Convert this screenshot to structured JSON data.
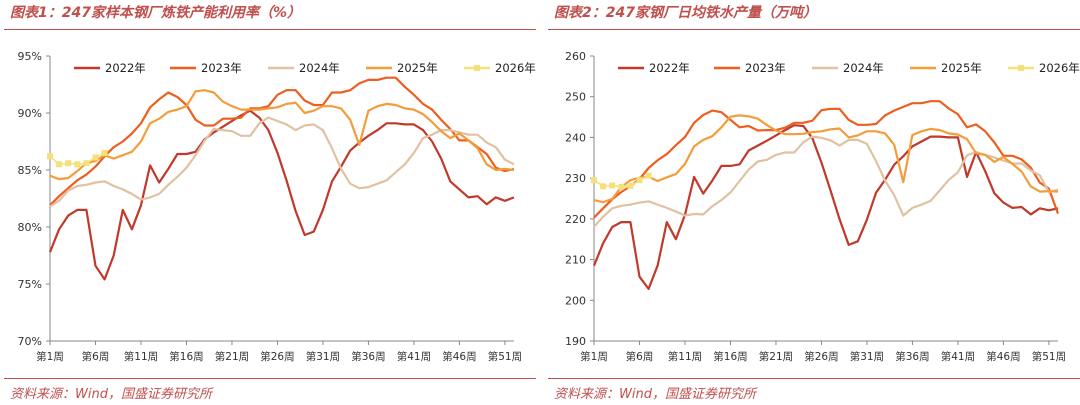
{
  "charts": [
    {
      "title": "图表1：247家样本钢厂炼铁产能利用率（%）",
      "source": "资料来源：Wind，国盛证券研究所"
    },
    {
      "title": "图表2：247家钢厂日均铁水产量（万吨）",
      "source": "资料来源：Wind，国盛证券研究所"
    }
  ],
  "chart_data": [
    {
      "type": "line",
      "title": "图表1：247家样本钢厂炼铁产能利用率（%）",
      "xlabel": "",
      "ylabel": "",
      "ylim": [
        70,
        95
      ],
      "yticks": [
        70,
        75,
        80,
        85,
        90,
        95
      ],
      "ytick_labels": [
        "70%",
        "75%",
        "80%",
        "85%",
        "90%",
        "95%"
      ],
      "xlim": [
        1,
        52
      ],
      "xtick_weeks": [
        1,
        6,
        11,
        16,
        21,
        26,
        31,
        36,
        41,
        46,
        51
      ],
      "xtick_labels": [
        "第1周",
        "第6周",
        "第11周",
        "第16周",
        "第21周",
        "第26周",
        "第31周",
        "第36周",
        "第41周",
        "第46周",
        "第51周"
      ],
      "grid": false,
      "legend_position": "top",
      "series": [
        {
          "name": "2022年",
          "color": "#c0392b",
          "marker": "none",
          "values": [
            77.8,
            79.8,
            81.0,
            81.5,
            81.5,
            76.6,
            75.4,
            77.5,
            81.5,
            79.8,
            81.9,
            85.4,
            83.9,
            85.1,
            86.4,
            86.4,
            86.6,
            87.7,
            88.3,
            88.8,
            89.3,
            89.8,
            90.2,
            89.6,
            88.5,
            86.5,
            84.1,
            81.4,
            79.3,
            79.6,
            81.5,
            84.0,
            85.3,
            86.7,
            87.4,
            88.0,
            88.5,
            89.1,
            89.1,
            89.0,
            89.0,
            88.5,
            87.5,
            86.0,
            84.0,
            83.3,
            82.6,
            82.7,
            82.0,
            82.6,
            82.3,
            82.6
          ]
        },
        {
          "name": "2023年",
          "color": "#ed5e1f",
          "marker": "none",
          "values": [
            81.9,
            82.7,
            83.4,
            84.1,
            84.6,
            85.3,
            86.2,
            87.0,
            87.5,
            88.2,
            89.1,
            90.5,
            91.2,
            91.8,
            91.4,
            90.7,
            89.4,
            88.9,
            88.9,
            89.5,
            89.5,
            89.6,
            90.4,
            90.4,
            90.6,
            91.6,
            92.0,
            92.0,
            91.1,
            90.7,
            90.7,
            91.8,
            91.8,
            92.0,
            92.6,
            92.9,
            92.9,
            93.1,
            93.1,
            92.3,
            91.6,
            90.8,
            90.3,
            89.4,
            88.6,
            87.6,
            87.6,
            87.0,
            86.4,
            85.2,
            84.9,
            85.1
          ]
        },
        {
          "name": "2024年",
          "color": "#e0c2a2",
          "marker": "none",
          "values": [
            81.8,
            82.3,
            83.2,
            83.6,
            83.7,
            83.9,
            84.0,
            83.6,
            83.3,
            82.9,
            82.4,
            82.6,
            82.9,
            83.7,
            84.4,
            85.2,
            86.3,
            87.6,
            88.6,
            88.5,
            88.4,
            88.0,
            88.0,
            89.1,
            89.6,
            89.3,
            89.0,
            88.5,
            88.9,
            89.0,
            88.5,
            86.9,
            85.1,
            83.8,
            83.4,
            83.5,
            83.8,
            84.1,
            84.8,
            85.5,
            86.5,
            87.8,
            88.1,
            88.5,
            88.5,
            88.3,
            88.1,
            88.1,
            87.4,
            87.0,
            85.9,
            85.5
          ]
        },
        {
          "name": "2025年",
          "color": "#f39c3a",
          "marker": "none",
          "values": [
            84.5,
            84.2,
            84.3,
            84.9,
            85.6,
            85.8,
            86.3,
            86.0,
            86.3,
            86.6,
            87.5,
            89.1,
            89.5,
            90.1,
            90.3,
            90.6,
            91.9,
            92.0,
            91.8,
            91.0,
            90.6,
            90.3,
            90.3,
            90.3,
            90.4,
            90.5,
            90.8,
            90.9,
            90.0,
            90.2,
            90.6,
            90.6,
            90.4,
            89.4,
            87.2,
            90.2,
            90.6,
            90.8,
            90.7,
            90.4,
            90.3,
            89.9,
            89.2,
            88.4,
            87.8,
            88.2,
            87.6,
            86.9,
            85.5,
            85.0,
            85.1,
            85.0
          ]
        },
        {
          "name": "2026年",
          "color": "#f5e07a",
          "marker": "square",
          "values": [
            86.2,
            85.5,
            85.6,
            85.5,
            85.6,
            86.1,
            86.5
          ]
        }
      ]
    },
    {
      "type": "line",
      "title": "图表2：247家钢厂日均铁水产量（万吨）",
      "xlabel": "",
      "ylabel": "",
      "ylim": [
        190,
        260
      ],
      "yticks": [
        190,
        200,
        210,
        220,
        230,
        240,
        250,
        260
      ],
      "ytick_labels": [
        "190",
        "200",
        "210",
        "220",
        "230",
        "240",
        "250",
        "260"
      ],
      "xlim": [
        1,
        52
      ],
      "xtick_weeks": [
        1,
        6,
        11,
        16,
        21,
        26,
        31,
        36,
        41,
        46,
        51
      ],
      "xtick_labels": [
        "第1周",
        "第6周",
        "第11周",
        "第16周",
        "第21周",
        "第26周",
        "第31周",
        "第36周",
        "第41周",
        "第46周",
        "第51周"
      ],
      "grid": false,
      "legend_position": "top",
      "series": [
        {
          "name": "2022年",
          "color": "#c0392b",
          "marker": "none",
          "values": [
            208.5,
            214.0,
            218.0,
            219.2,
            219.2,
            205.8,
            202.8,
            208.6,
            219.2,
            215.0,
            221.0,
            230.3,
            226.2,
            229.4,
            233.0,
            233.0,
            233.4,
            236.8,
            238.0,
            239.2,
            240.5,
            241.8,
            243.0,
            242.8,
            239.8,
            233.8,
            227.0,
            219.9,
            213.6,
            214.5,
            219.8,
            226.4,
            229.6,
            233.3,
            235.4,
            237.8,
            239.0,
            240.2,
            240.2,
            240.0,
            240.0,
            230.3,
            236.4,
            231.7,
            226.3,
            224.0,
            222.7,
            222.9,
            221.1,
            222.6,
            222.1,
            222.6
          ]
        },
        {
          "name": "2023年",
          "color": "#ed5e1f",
          "marker": "none",
          "values": [
            220.3,
            222.6,
            224.8,
            226.6,
            228.0,
            229.8,
            232.5,
            234.4,
            235.9,
            238.1,
            240.1,
            243.6,
            245.5,
            246.6,
            246.2,
            244.3,
            242.5,
            242.8,
            241.7,
            241.8,
            241.8,
            242.4,
            243.6,
            243.6,
            244.1,
            246.7,
            247.0,
            247.0,
            244.3,
            243.1,
            243.1,
            243.3,
            245.4,
            246.6,
            247.5,
            248.4,
            248.4,
            248.9,
            248.9,
            247.1,
            245.7,
            242.5,
            243.2,
            241.5,
            238.8,
            235.5,
            235.5,
            234.6,
            232.6,
            228.9,
            227.4,
            221.3
          ]
        },
        {
          "name": "2024年",
          "color": "#e0c2a2",
          "marker": "none",
          "values": [
            218.1,
            220.5,
            222.6,
            223.2,
            223.5,
            224.0,
            224.3,
            223.5,
            222.7,
            221.8,
            220.8,
            221.2,
            221.1,
            223.1,
            224.6,
            226.5,
            229.3,
            232.1,
            234.1,
            234.5,
            235.7,
            236.3,
            236.3,
            238.8,
            240.2,
            239.9,
            239.3,
            238.0,
            239.4,
            239.4,
            238.4,
            234.2,
            229.4,
            225.8,
            220.8,
            222.7,
            223.5,
            224.4,
            227.0,
            229.6,
            231.4,
            235.6,
            236.4,
            235.7,
            235.1,
            234.3,
            233.6,
            233.6,
            231.9,
            230.7,
            226.6,
            227.2
          ]
        },
        {
          "name": "2025年",
          "color": "#f39c3a",
          "marker": "none",
          "values": [
            224.6,
            224.1,
            224.9,
            227.8,
            229.5,
            230.1,
            230.3,
            229.3,
            230.2,
            231.0,
            233.5,
            237.8,
            239.4,
            240.3,
            242.5,
            245.1,
            245.4,
            245.2,
            244.6,
            243.0,
            241.7,
            240.8,
            240.8,
            240.9,
            241.3,
            241.5,
            242.0,
            242.2,
            240.0,
            240.5,
            241.5,
            241.5,
            241.0,
            238.2,
            229.0,
            240.6,
            241.5,
            242.1,
            241.8,
            241.0,
            240.7,
            239.6,
            236.1,
            235.7,
            234.0,
            235.2,
            233.5,
            231.6,
            228.0,
            226.7,
            226.8,
            226.7
          ]
        },
        {
          "name": "2026年",
          "color": "#f5e07a",
          "marker": "square",
          "values": [
            229.5,
            228.0,
            228.2,
            227.9,
            228.1,
            229.5,
            230.6
          ]
        }
      ]
    }
  ]
}
